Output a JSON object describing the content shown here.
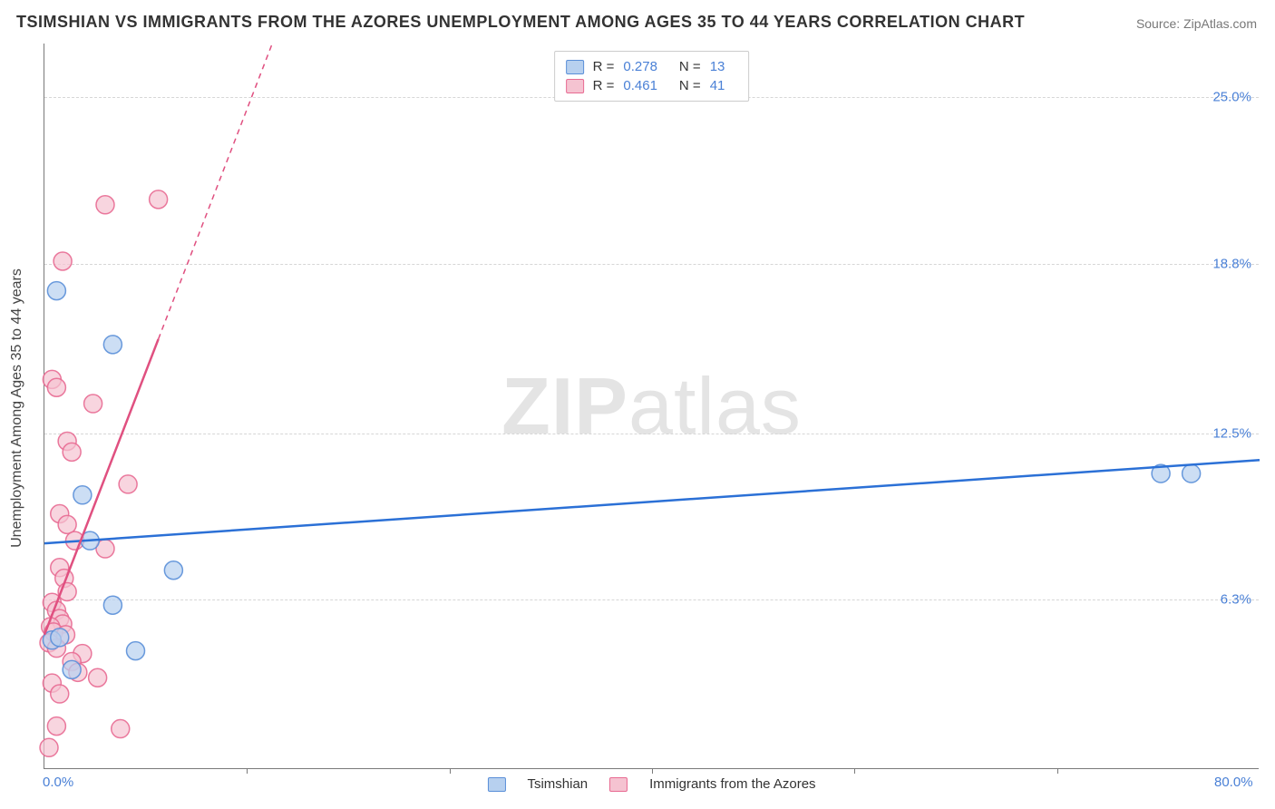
{
  "title": "TSIMSHIAN VS IMMIGRANTS FROM THE AZORES UNEMPLOYMENT AMONG AGES 35 TO 44 YEARS CORRELATION CHART",
  "source": "Source: ZipAtlas.com",
  "watermark_bold": "ZIP",
  "watermark_light": "atlas",
  "y_axis_title": "Unemployment Among Ages 35 to 44 years",
  "xlim": [
    0,
    80
  ],
  "ylim": [
    0,
    27
  ],
  "x_ticks": [
    {
      "pos": 0,
      "label": "0.0%"
    },
    {
      "pos": 80,
      "label": "80.0%"
    }
  ],
  "x_tick_marks": [
    13.33,
    26.67,
    40,
    53.33,
    66.67
  ],
  "y_ticks": [
    {
      "pos": 6.3,
      "label": "6.3%"
    },
    {
      "pos": 12.5,
      "label": "12.5%"
    },
    {
      "pos": 18.8,
      "label": "18.8%"
    },
    {
      "pos": 25.0,
      "label": "25.0%"
    }
  ],
  "grid_color": "#d6d6d6",
  "background_color": "#ffffff",
  "series": [
    {
      "name": "Tsimshian",
      "color_fill": "#b7d0ef",
      "color_stroke": "#5a8fd8",
      "line_color": "#2b70d6",
      "r_label": "R =",
      "r_value": "0.278",
      "n_label": "N =",
      "n_value": "13",
      "marker_radius": 10,
      "marker_opacity": 0.7,
      "trend": {
        "x1": 0,
        "y1": 8.4,
        "x2": 80,
        "y2": 11.5,
        "width": 2.5
      },
      "points": [
        {
          "x": 0.8,
          "y": 17.8
        },
        {
          "x": 4.5,
          "y": 15.8
        },
        {
          "x": 2.5,
          "y": 10.2
        },
        {
          "x": 3.0,
          "y": 8.5
        },
        {
          "x": 8.5,
          "y": 7.4
        },
        {
          "x": 4.5,
          "y": 6.1
        },
        {
          "x": 6.0,
          "y": 4.4
        },
        {
          "x": 1.8,
          "y": 3.7
        },
        {
          "x": 0.5,
          "y": 4.8
        },
        {
          "x": 1.0,
          "y": 4.9
        },
        {
          "x": 73.5,
          "y": 11.0
        },
        {
          "x": 75.5,
          "y": 11.0
        }
      ]
    },
    {
      "name": "Immigrants from the Azores",
      "color_fill": "#f5c3d1",
      "color_stroke": "#e86a92",
      "line_color": "#e05080",
      "r_label": "R =",
      "r_value": "0.461",
      "n_label": "N =",
      "n_value": "41",
      "marker_radius": 10,
      "marker_opacity": 0.7,
      "trend_solid": {
        "x1": 0,
        "y1": 5.0,
        "x2": 7.5,
        "y2": 16.0,
        "width": 2.5
      },
      "trend_dashed": {
        "x1": 7.5,
        "y1": 16.0,
        "x2": 15,
        "y2": 27.0,
        "width": 1.5
      },
      "points": [
        {
          "x": 4.0,
          "y": 21.0
        },
        {
          "x": 7.5,
          "y": 21.2
        },
        {
          "x": 1.2,
          "y": 18.9
        },
        {
          "x": 0.5,
          "y": 14.5
        },
        {
          "x": 0.8,
          "y": 14.2
        },
        {
          "x": 3.2,
          "y": 13.6
        },
        {
          "x": 1.5,
          "y": 12.2
        },
        {
          "x": 1.8,
          "y": 11.8
        },
        {
          "x": 5.5,
          "y": 10.6
        },
        {
          "x": 1.0,
          "y": 9.5
        },
        {
          "x": 1.5,
          "y": 9.1
        },
        {
          "x": 2.0,
          "y": 8.5
        },
        {
          "x": 4.0,
          "y": 8.2
        },
        {
          "x": 1.0,
          "y": 7.5
        },
        {
          "x": 1.3,
          "y": 7.1
        },
        {
          "x": 1.5,
          "y": 6.6
        },
        {
          "x": 0.5,
          "y": 6.2
        },
        {
          "x": 0.8,
          "y": 5.9
        },
        {
          "x": 1.0,
          "y": 5.6
        },
        {
          "x": 1.2,
          "y": 5.4
        },
        {
          "x": 0.4,
          "y": 5.3
        },
        {
          "x": 0.6,
          "y": 5.1
        },
        {
          "x": 1.4,
          "y": 5.0
        },
        {
          "x": 0.3,
          "y": 4.7
        },
        {
          "x": 0.8,
          "y": 4.5
        },
        {
          "x": 2.5,
          "y": 4.3
        },
        {
          "x": 1.8,
          "y": 4.0
        },
        {
          "x": 2.2,
          "y": 3.6
        },
        {
          "x": 3.5,
          "y": 3.4
        },
        {
          "x": 0.5,
          "y": 3.2
        },
        {
          "x": 1.0,
          "y": 2.8
        },
        {
          "x": 0.8,
          "y": 1.6
        },
        {
          "x": 5.0,
          "y": 1.5
        },
        {
          "x": 0.3,
          "y": 0.8
        }
      ]
    }
  ]
}
